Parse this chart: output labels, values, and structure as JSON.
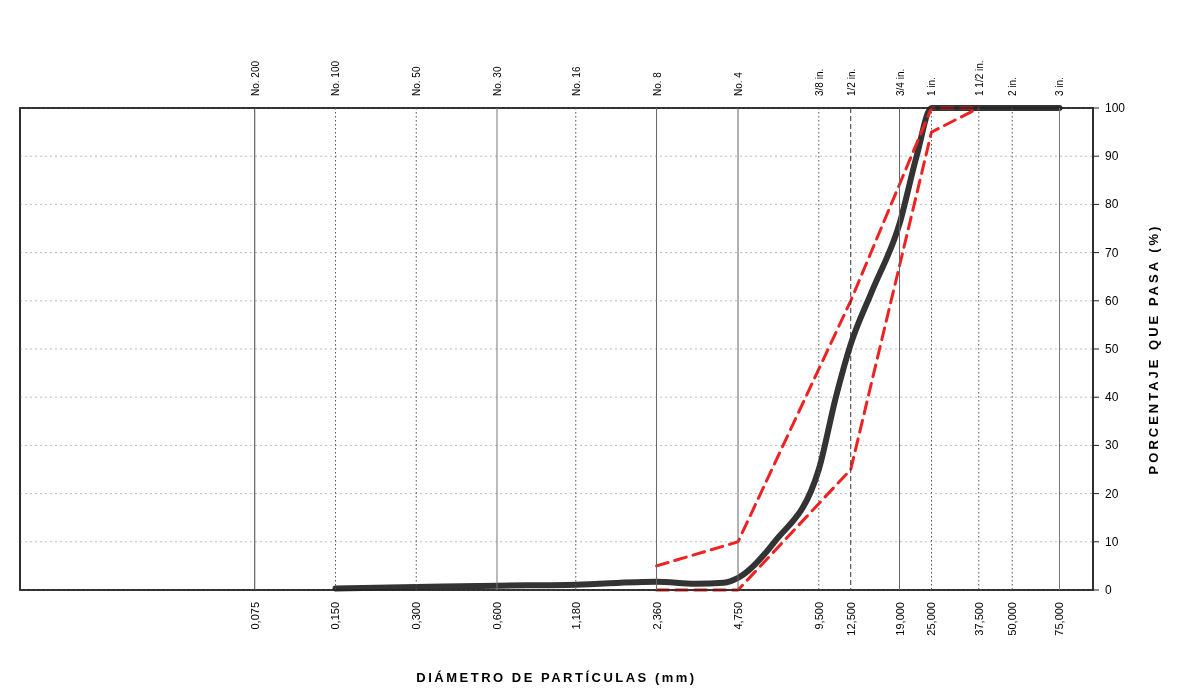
{
  "chart_data": {
    "type": "line",
    "xlabel": "DIÁMETRO DE PARTÍCULAS (mm)",
    "ylabel": "PORCENTAJE QUE PASA (%)",
    "log": "x",
    "grid": "y",
    "xlim": [
      0.01,
      100
    ],
    "ylim": [
      0,
      100
    ],
    "xticks": [
      {
        "value": 0.075,
        "label": "0,075"
      },
      {
        "value": 0.15,
        "label": "0,150"
      },
      {
        "value": 0.3,
        "label": "0,300"
      },
      {
        "value": 0.6,
        "label": "0,600"
      },
      {
        "value": 1.18,
        "label": "1,180"
      },
      {
        "value": 2.36,
        "label": "2,360"
      },
      {
        "value": 4.75,
        "label": "4,750"
      },
      {
        "value": 9.5,
        "label": "9,500"
      },
      {
        "value": 12.5,
        "label": "12,500"
      },
      {
        "value": 19,
        "label": "19,000"
      },
      {
        "value": 25,
        "label": "25,000"
      },
      {
        "value": 37.5,
        "label": "37,500"
      },
      {
        "value": 50,
        "label": "50,000"
      },
      {
        "value": 75,
        "label": "75,000"
      }
    ],
    "ref_lines": [
      {
        "axis": "x",
        "value": 0.075,
        "label": "No. 200",
        "line_style": "solid",
        "color": "#444444"
      },
      {
        "axis": "x",
        "value": 0.15,
        "label": "No. 100",
        "line_style": "dotted",
        "color": "#555555"
      },
      {
        "axis": "x",
        "value": 0.3,
        "label": "No. 50",
        "line_style": "dotted",
        "color": "#555555"
      },
      {
        "axis": "x",
        "value": 0.6,
        "label": "No. 30",
        "line_style": "solid",
        "color": "#777777"
      },
      {
        "axis": "x",
        "value": 1.18,
        "label": "No. 16",
        "line_style": "dotted",
        "color": "#555555"
      },
      {
        "axis": "x",
        "value": 2.36,
        "label": "No. 8",
        "line_style": "solid",
        "color": "#666666"
      },
      {
        "axis": "x",
        "value": 4.75,
        "label": "No. 4",
        "line_style": "solid",
        "color": "#666666"
      },
      {
        "axis": "x",
        "value": 9.5,
        "label": "3/8 in.",
        "line_style": "dotted",
        "color": "#555555"
      },
      {
        "axis": "x",
        "value": 12.5,
        "label": "1/2 in.",
        "line_style": "dashed",
        "color": "#333333"
      },
      {
        "axis": "x",
        "value": 19,
        "label": "3/4 in.",
        "line_style": "solid",
        "color": "#666666"
      },
      {
        "axis": "x",
        "value": 25,
        "label": "1 in.",
        "line_style": "dotted",
        "color": "#555555"
      },
      {
        "axis": "x",
        "value": 37.5,
        "label": "1 1/2 in.",
        "line_style": "dotted",
        "color": "#555555"
      },
      {
        "axis": "x",
        "value": 50,
        "label": "2 in.",
        "line_style": "dotted",
        "color": "#555555"
      },
      {
        "axis": "x",
        "value": 75,
        "label": "3 in.",
        "line_style": "solid",
        "color": "#777777"
      }
    ],
    "yticks": [
      0,
      10,
      20,
      30,
      40,
      50,
      60,
      70,
      80,
      90,
      100
    ],
    "series": [
      {
        "color": "#333333",
        "line_style": "solid",
        "x": [
          0.15,
          0.3,
          0.6,
          1.18,
          2.36,
          3.3,
          4.2,
          4.75,
          6.5,
          9.5,
          11,
          12.5,
          15,
          19,
          22,
          25,
          75
        ],
        "values": [
          0.3,
          0.6,
          0.9,
          1.1,
          1.7,
          1.3,
          1.5,
          2.5,
          10,
          25,
          40,
          51,
          62,
          76,
          90,
          100,
          100
        ]
      },
      {
        "color": "#ee2222",
        "line_style": "dashed",
        "x": [
          2.36,
          4.75,
          12.5,
          25,
          37.5
        ],
        "values": [
          5,
          10,
          60,
          100,
          100
        ]
      },
      {
        "color": "#ee2222",
        "line_style": "dashed",
        "x": [
          2.36,
          4.75,
          12.5,
          25,
          37.5
        ],
        "values": [
          0,
          0,
          25,
          95,
          100
        ]
      }
    ]
  }
}
